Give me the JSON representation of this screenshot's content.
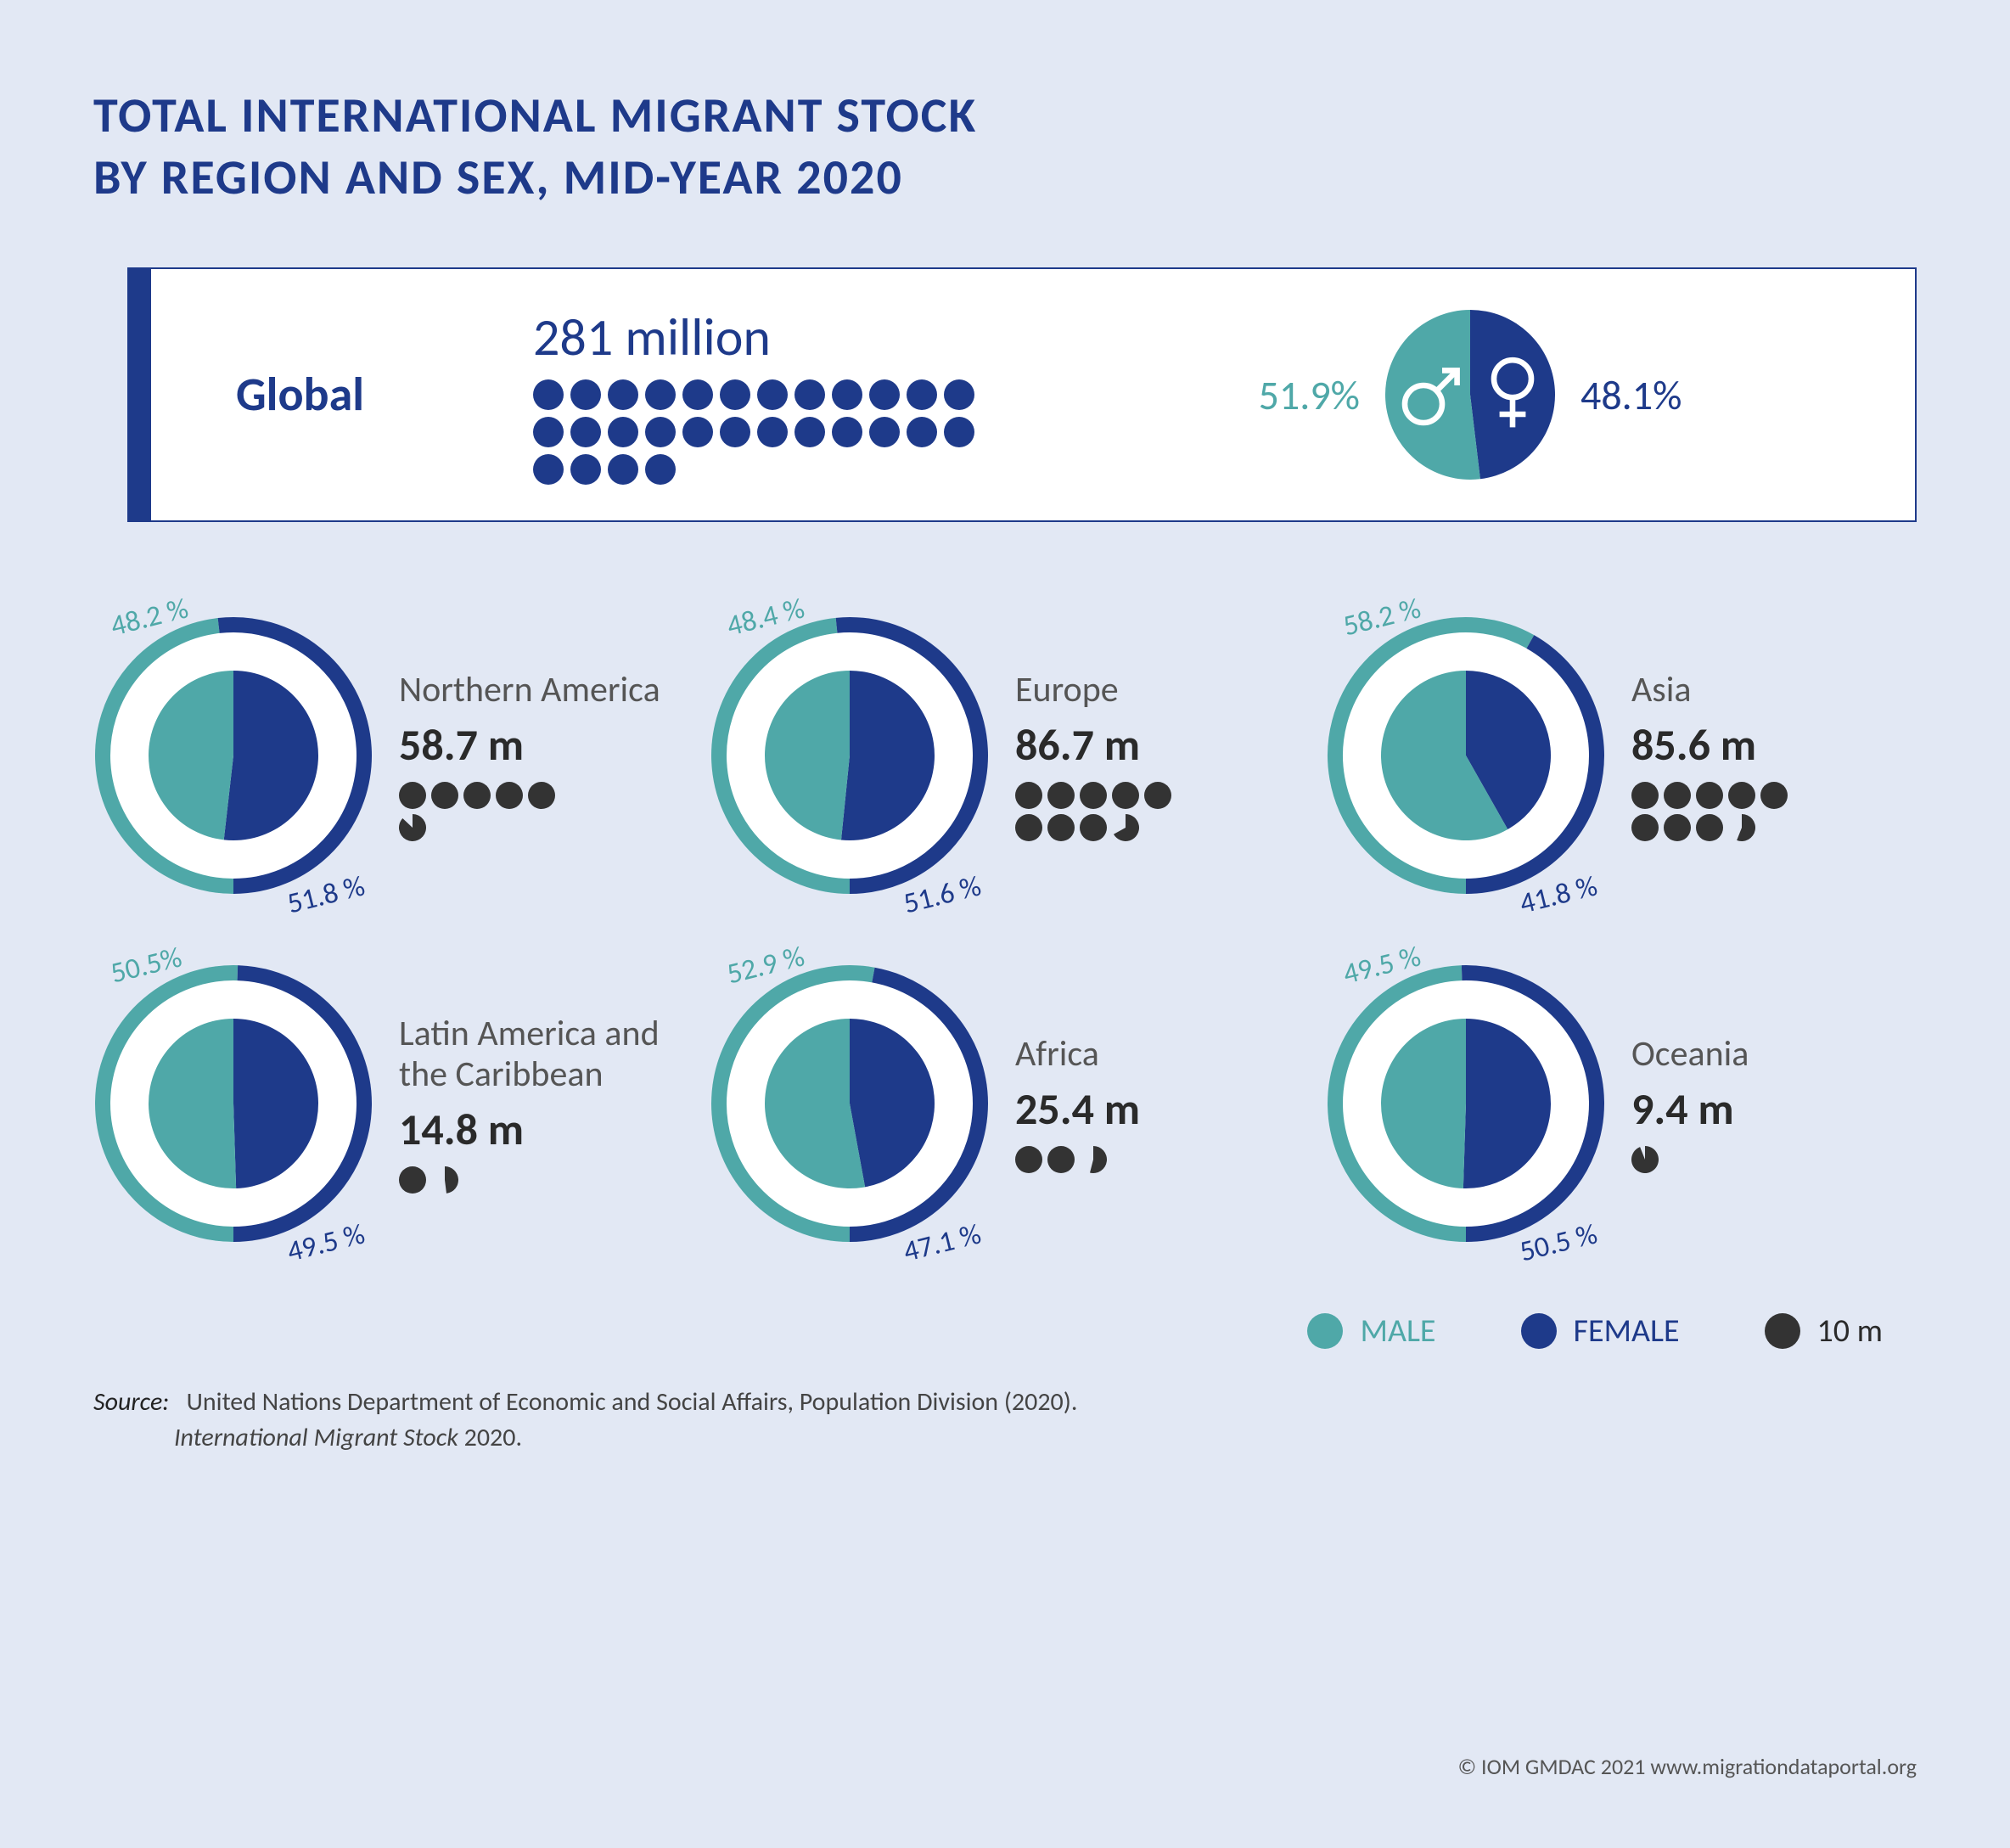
{
  "colors": {
    "background": "#e2e8f4",
    "primary": "#1e3a8a",
    "male": "#4fa8a8",
    "female": "#1e3a8a",
    "dark_dot": "#333333",
    "text_gray": "#555555",
    "white": "#ffffff"
  },
  "title_line1": "TOTAL INTERNATIONAL MIGRANT STOCK",
  "title_line2": "BY REGION AND SEX, MID-YEAR 2020",
  "global": {
    "label": "Global",
    "total_label": "281 million",
    "total_value": 281,
    "dot_unit": 10,
    "male_pct": 51.9,
    "male_pct_label": "51.9%",
    "female_pct": 48.1,
    "female_pct_label": "48.1%"
  },
  "regions": [
    {
      "name": "Northern America",
      "value": 58.7,
      "value_label": "58.7 m",
      "male_pct": 48.2,
      "male_label": "48.2 %",
      "female_pct": 51.8,
      "female_label": "51.8 %"
    },
    {
      "name": "Europe",
      "value": 86.7,
      "value_label": "86.7 m",
      "male_pct": 48.4,
      "male_label": "48.4 %",
      "female_pct": 51.6,
      "female_label": "51.6 %"
    },
    {
      "name": "Asia",
      "value": 85.6,
      "value_label": "85.6 m",
      "male_pct": 58.2,
      "male_label": "58.2 %",
      "female_pct": 41.8,
      "female_label": "41.8 %"
    },
    {
      "name": "Latin America and the Caribbean",
      "value": 14.8,
      "value_label": "14.8 m",
      "male_pct": 50.5,
      "male_label": "50.5%",
      "female_pct": 49.5,
      "female_label": "49.5 %"
    },
    {
      "name": "Africa",
      "value": 25.4,
      "value_label": "25.4 m",
      "male_pct": 52.9,
      "male_label": "52.9 %",
      "female_pct": 47.1,
      "female_label": "47.1 %"
    },
    {
      "name": "Oceania",
      "value": 9.4,
      "value_label": "9.4 m",
      "male_pct": 49.5,
      "male_label": "49.5 %",
      "female_pct": 50.5,
      "female_label": "50.5 %"
    }
  ],
  "legend": {
    "male": "MALE",
    "female": "FEMALE",
    "unit": "10 m"
  },
  "source": {
    "label": "Source:",
    "line1": "United Nations Department of Economic and Social Affairs, Population Division (2020).",
    "line2_italic": "International Migrant Stock",
    "line2_rest": " 2020."
  },
  "copyright": "© IOM GMDAC 2021 www.migrationdataportal.org",
  "chart_style": {
    "region_outer_radius": 165,
    "region_ring_width": 18,
    "region_inner_pie_radius": 100,
    "global_pie_radius": 100,
    "font_pct": 34,
    "font_title": 58,
    "font_region_name": 42,
    "font_region_value": 52
  }
}
